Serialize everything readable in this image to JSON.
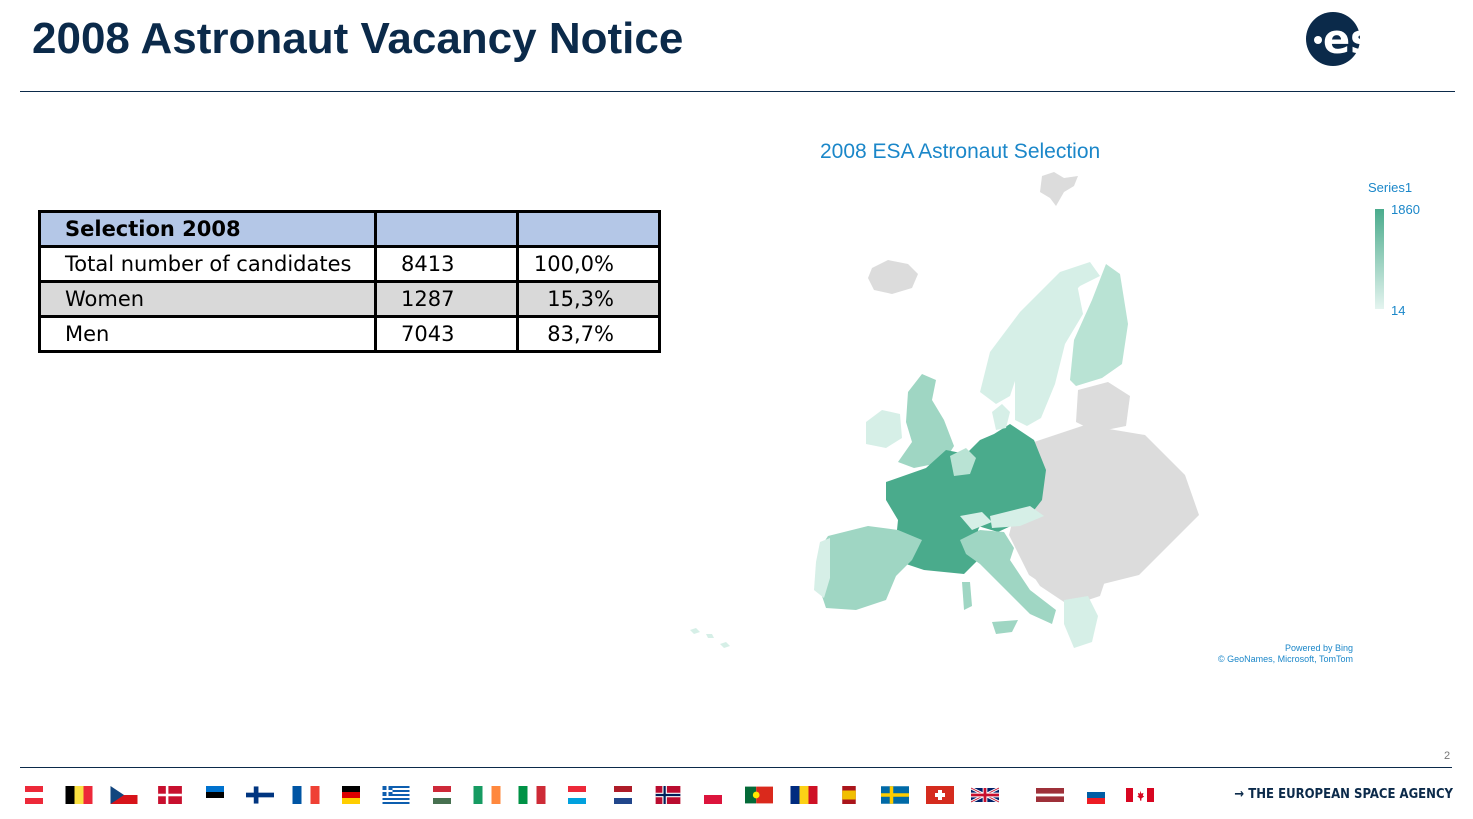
{
  "header": {
    "title": "2008 Astronaut Vacancy Notice",
    "logo_text": "esa"
  },
  "table": {
    "header": [
      "Selection 2008",
      "",
      ""
    ],
    "rows": [
      [
        "Total number of candidates",
        "8413",
        "100,0%"
      ],
      [
        "Women",
        "1287",
        "15,3%"
      ],
      [
        "Men",
        "7043",
        "83,7%"
      ]
    ]
  },
  "map": {
    "title": "2008 ESA Astronaut Selection",
    "legend_title": "Series1",
    "legend_max": "1860",
    "legend_min": "14",
    "credit_line1": "Powered by Bing",
    "credit_line2": "© GeoNames, Microsoft, TomTom",
    "colors": {
      "high": "#4aab8c",
      "mid": "#9fd6c3",
      "low": "#d6efe7",
      "no_data": "#dcdcdc"
    }
  },
  "chart_data": {
    "type": "table",
    "columns": [
      "Selection 2008",
      "",
      ""
    ],
    "rows": [
      [
        "Total number of candidates",
        8413,
        "100,0%"
      ],
      [
        "Women",
        1287,
        "15,3%"
      ],
      [
        "Men",
        7043,
        "83,7%"
      ]
    ]
  },
  "footer": {
    "page_number": "2",
    "agency": "→ THE EUROPEAN SPACE AGENCY",
    "flags": [
      "austria-flag",
      "belgium-flag",
      "czechia-flag",
      "denmark-flag",
      "estonia-flag",
      "finland-flag",
      "france-flag",
      "germany-flag",
      "greece-flag",
      "hungary-flag",
      "ireland-flag",
      "italy-flag",
      "luxembourg-flag",
      "netherlands-flag",
      "norway-flag",
      "poland-flag",
      "portugal-flag",
      "romania-flag",
      "spain-flag",
      "sweden-flag",
      "switzerland-flag",
      "uk-flag",
      "latvia-flag",
      "slovenia-flag",
      "canada-flag"
    ]
  }
}
